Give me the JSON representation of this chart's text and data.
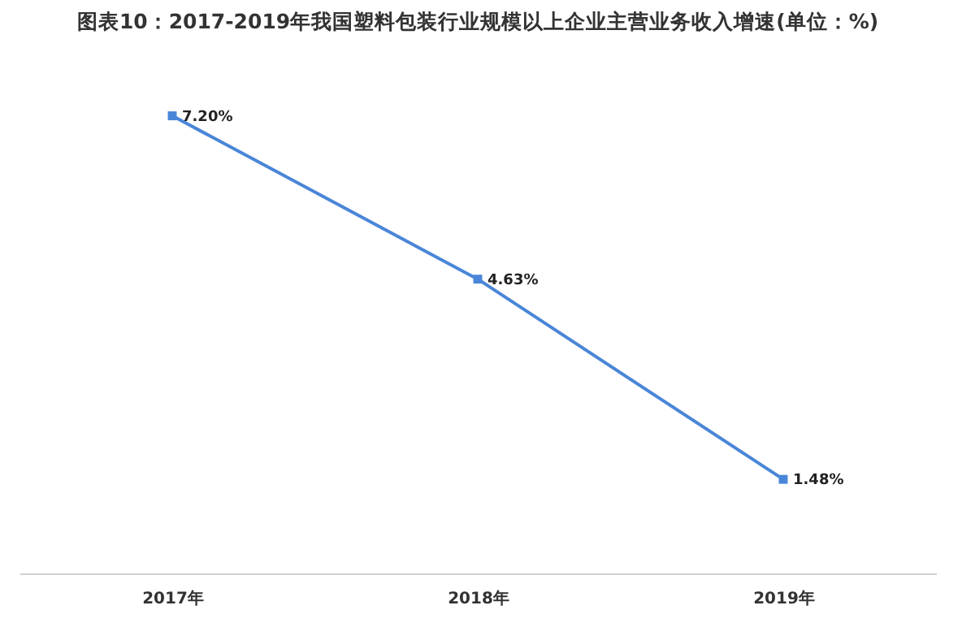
{
  "chart_data": {
    "type": "line",
    "title": "图表10：2017-2019年我国塑料包装行业规模以上企业主营业务收入增速(单位：%)",
    "categories": [
      "2017年",
      "2018年",
      "2019年"
    ],
    "series": [
      {
        "color": "#4a86d8",
        "values": [
          7.2,
          4.63,
          1.48
        ],
        "value_labels": [
          "7.20%",
          "4.63%",
          "1.48%"
        ]
      }
    ],
    "marker": "square"
  }
}
